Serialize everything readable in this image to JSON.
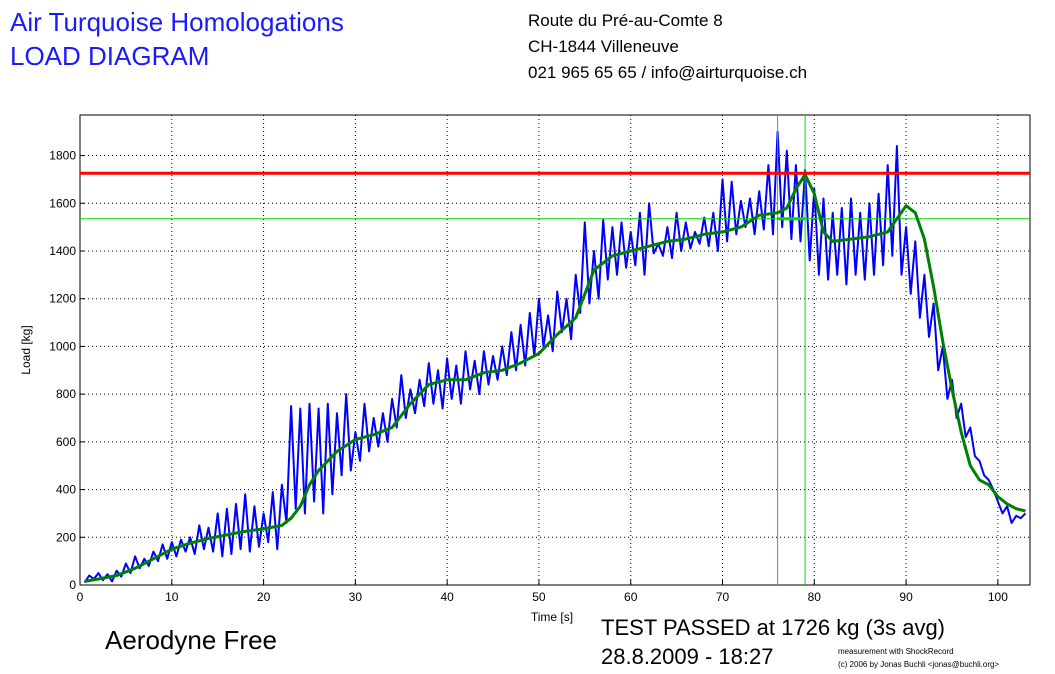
{
  "header": {
    "company": "Air Turquoise Homologations",
    "doc_title": "LOAD DIAGRAM",
    "address_line1": "Route du Pré-au-Comte 8",
    "address_line2": "CH-1844 Villeneuve",
    "contact": "021 965 65 65 / info@airturquoise.ch"
  },
  "footer": {
    "glider": "Aerodyne Free",
    "result": "TEST PASSED at 1726 kg (3s avg)",
    "datetime": "28.8.2009 - 18:27",
    "credit_line1": "measurement with ShockRecord",
    "credit_line2": "(c) 2006 by Jonas Buchli <jonas@buchli.org>"
  },
  "colors": {
    "raw": "#0000ff",
    "avg": "#008000",
    "limit": "#ff0000",
    "marker": "#00dd00",
    "grid": "#000000"
  },
  "chart_data": {
    "type": "line",
    "xlabel": "Time [s]",
    "ylabel": "Load [kg]",
    "xlim": [
      0,
      103.5
    ],
    "ylim": [
      0,
      1970
    ],
    "xticks": [
      0,
      10,
      20,
      30,
      40,
      50,
      60,
      70,
      80,
      90,
      100
    ],
    "yticks": [
      0,
      200,
      400,
      600,
      800,
      1000,
      1200,
      1400,
      1600,
      1800
    ],
    "grid": true,
    "limit_line": 1726,
    "avg_peak_line": 1535,
    "marker_times": [
      76,
      79
    ],
    "series": [
      {
        "role": "raw",
        "x": [
          0.5,
          1,
          1.5,
          2,
          2.5,
          3,
          3.5,
          4,
          4.5,
          5,
          5.5,
          6,
          6.5,
          7,
          7.5,
          8,
          8.5,
          9,
          9.5,
          10,
          10.5,
          11,
          11.5,
          12,
          12.5,
          13,
          13.5,
          14,
          14.5,
          15,
          15.5,
          16,
          16.5,
          17,
          17.5,
          18,
          18.5,
          19,
          19.5,
          20,
          20.5,
          21,
          21.5,
          22,
          22.5,
          23,
          23.5,
          24,
          24.5,
          25,
          25.5,
          26,
          26.5,
          27,
          27.5,
          28,
          28.5,
          29,
          29.5,
          30,
          30.5,
          31,
          31.5,
          32,
          32.5,
          33,
          33.5,
          34,
          34.5,
          35,
          35.5,
          36,
          36.5,
          37,
          37.5,
          38,
          38.5,
          39,
          39.5,
          40,
          40.5,
          41,
          41.5,
          42,
          42.5,
          43,
          43.5,
          44,
          44.5,
          45,
          45.5,
          46,
          46.5,
          47,
          47.5,
          48,
          48.5,
          49,
          49.5,
          50,
          50.5,
          51,
          51.5,
          52,
          52.5,
          53,
          53.5,
          54,
          54.5,
          55,
          55.5,
          56,
          56.5,
          57,
          57.5,
          58,
          58.5,
          59,
          59.5,
          60,
          60.5,
          61,
          61.5,
          62,
          62.5,
          63,
          63.5,
          64,
          64.5,
          65,
          65.5,
          66,
          66.5,
          67,
          67.5,
          68,
          68.5,
          69,
          69.5,
          70,
          70.5,
          71,
          71.5,
          72,
          72.5,
          73,
          73.5,
          74,
          74.5,
          75,
          75.5,
          76,
          76.5,
          77,
          77.5,
          78,
          78.5,
          79,
          79.5,
          80,
          80.5,
          81,
          81.5,
          82,
          82.5,
          83,
          83.5,
          84,
          84.5,
          85,
          85.5,
          86,
          86.5,
          87,
          87.5,
          88,
          88.5,
          89,
          89.5,
          90,
          90.5,
          91,
          91.5,
          92,
          92.5,
          93,
          93.5,
          94,
          94.5,
          95,
          95.5,
          96,
          96.5,
          97,
          97.5,
          98,
          98.5,
          99,
          99.5,
          100,
          100.5,
          101,
          101.5,
          102,
          102.5,
          103
        ],
        "y": [
          10,
          40,
          25,
          50,
          20,
          45,
          15,
          60,
          35,
          90,
          50,
          120,
          70,
          110,
          80,
          140,
          100,
          170,
          110,
          180,
          120,
          190,
          140,
          200,
          130,
          250,
          150,
          240,
          140,
          300,
          120,
          320,
          130,
          340,
          150,
          380,
          140,
          330,
          160,
          300,
          180,
          390,
          150,
          420,
          260,
          750,
          320,
          740,
          300,
          760,
          350,
          740,
          300,
          760,
          380,
          720,
          460,
          800,
          480,
          640,
          520,
          760,
          560,
          700,
          580,
          720,
          600,
          780,
          660,
          880,
          700,
          820,
          720,
          860,
          750,
          930,
          760,
          900,
          740,
          950,
          780,
          920,
          760,
          980,
          820,
          940,
          800,
          980,
          840,
          960,
          860,
          1000,
          880,
          1060,
          900,
          1090,
          920,
          1140,
          960,
          1200,
          1000,
          1130,
          980,
          1230,
          1060,
          1200,
          1030,
          1300,
          1140,
          1520,
          1180,
          1400,
          1200,
          1530,
          1280,
          1500,
          1300,
          1520,
          1330,
          1480,
          1340,
          1560,
          1300,
          1600,
          1390,
          1430,
          1380,
          1500,
          1370,
          1560,
          1400,
          1520,
          1410,
          1480,
          1430,
          1540,
          1420,
          1560,
          1400,
          1700,
          1440,
          1690,
          1470,
          1610,
          1500,
          1620,
          1470,
          1650,
          1490,
          1760,
          1470,
          1900,
          1500,
          1820,
          1450,
          1760,
          1440,
          1740,
          1360,
          1660,
          1300,
          1620,
          1280,
          1560,
          1300,
          1580,
          1260,
          1620,
          1300,
          1560,
          1280,
          1600,
          1300,
          1640,
          1340,
          1760,
          1380,
          1840,
          1300,
          1500,
          1220,
          1440,
          1120,
          1300,
          1040,
          1180,
          900,
          1000,
          780,
          860,
          700,
          760,
          620,
          660,
          540,
          520,
          460,
          440,
          400,
          350,
          300,
          330,
          260,
          290,
          280,
          300
        ]
      },
      {
        "role": "avg",
        "x": [
          0.5,
          2,
          4,
          6,
          8,
          10,
          12,
          14,
          16,
          18,
          20,
          22,
          23,
          24,
          25,
          26,
          28,
          30,
          32,
          34,
          36,
          38,
          40,
          42,
          44,
          46,
          48,
          50,
          52,
          54,
          56,
          58,
          60,
          62,
          64,
          66,
          68,
          70,
          72,
          74,
          76,
          77,
          78,
          79,
          80,
          81,
          82,
          84,
          86,
          88,
          90,
          91,
          92,
          93,
          94,
          95,
          96,
          97,
          98,
          99,
          100,
          101,
          102,
          103
        ],
        "y": [
          15,
          25,
          40,
          70,
          110,
          150,
          175,
          195,
          210,
          225,
          235,
          250,
          280,
          330,
          420,
          480,
          560,
          610,
          630,
          660,
          760,
          840,
          860,
          860,
          890,
          900,
          930,
          970,
          1050,
          1120,
          1320,
          1380,
          1400,
          1420,
          1440,
          1450,
          1470,
          1480,
          1500,
          1550,
          1560,
          1580,
          1660,
          1720,
          1640,
          1480,
          1440,
          1450,
          1460,
          1480,
          1590,
          1560,
          1450,
          1250,
          1020,
          820,
          640,
          500,
          440,
          420,
          370,
          340,
          320,
          310
        ]
      }
    ]
  }
}
